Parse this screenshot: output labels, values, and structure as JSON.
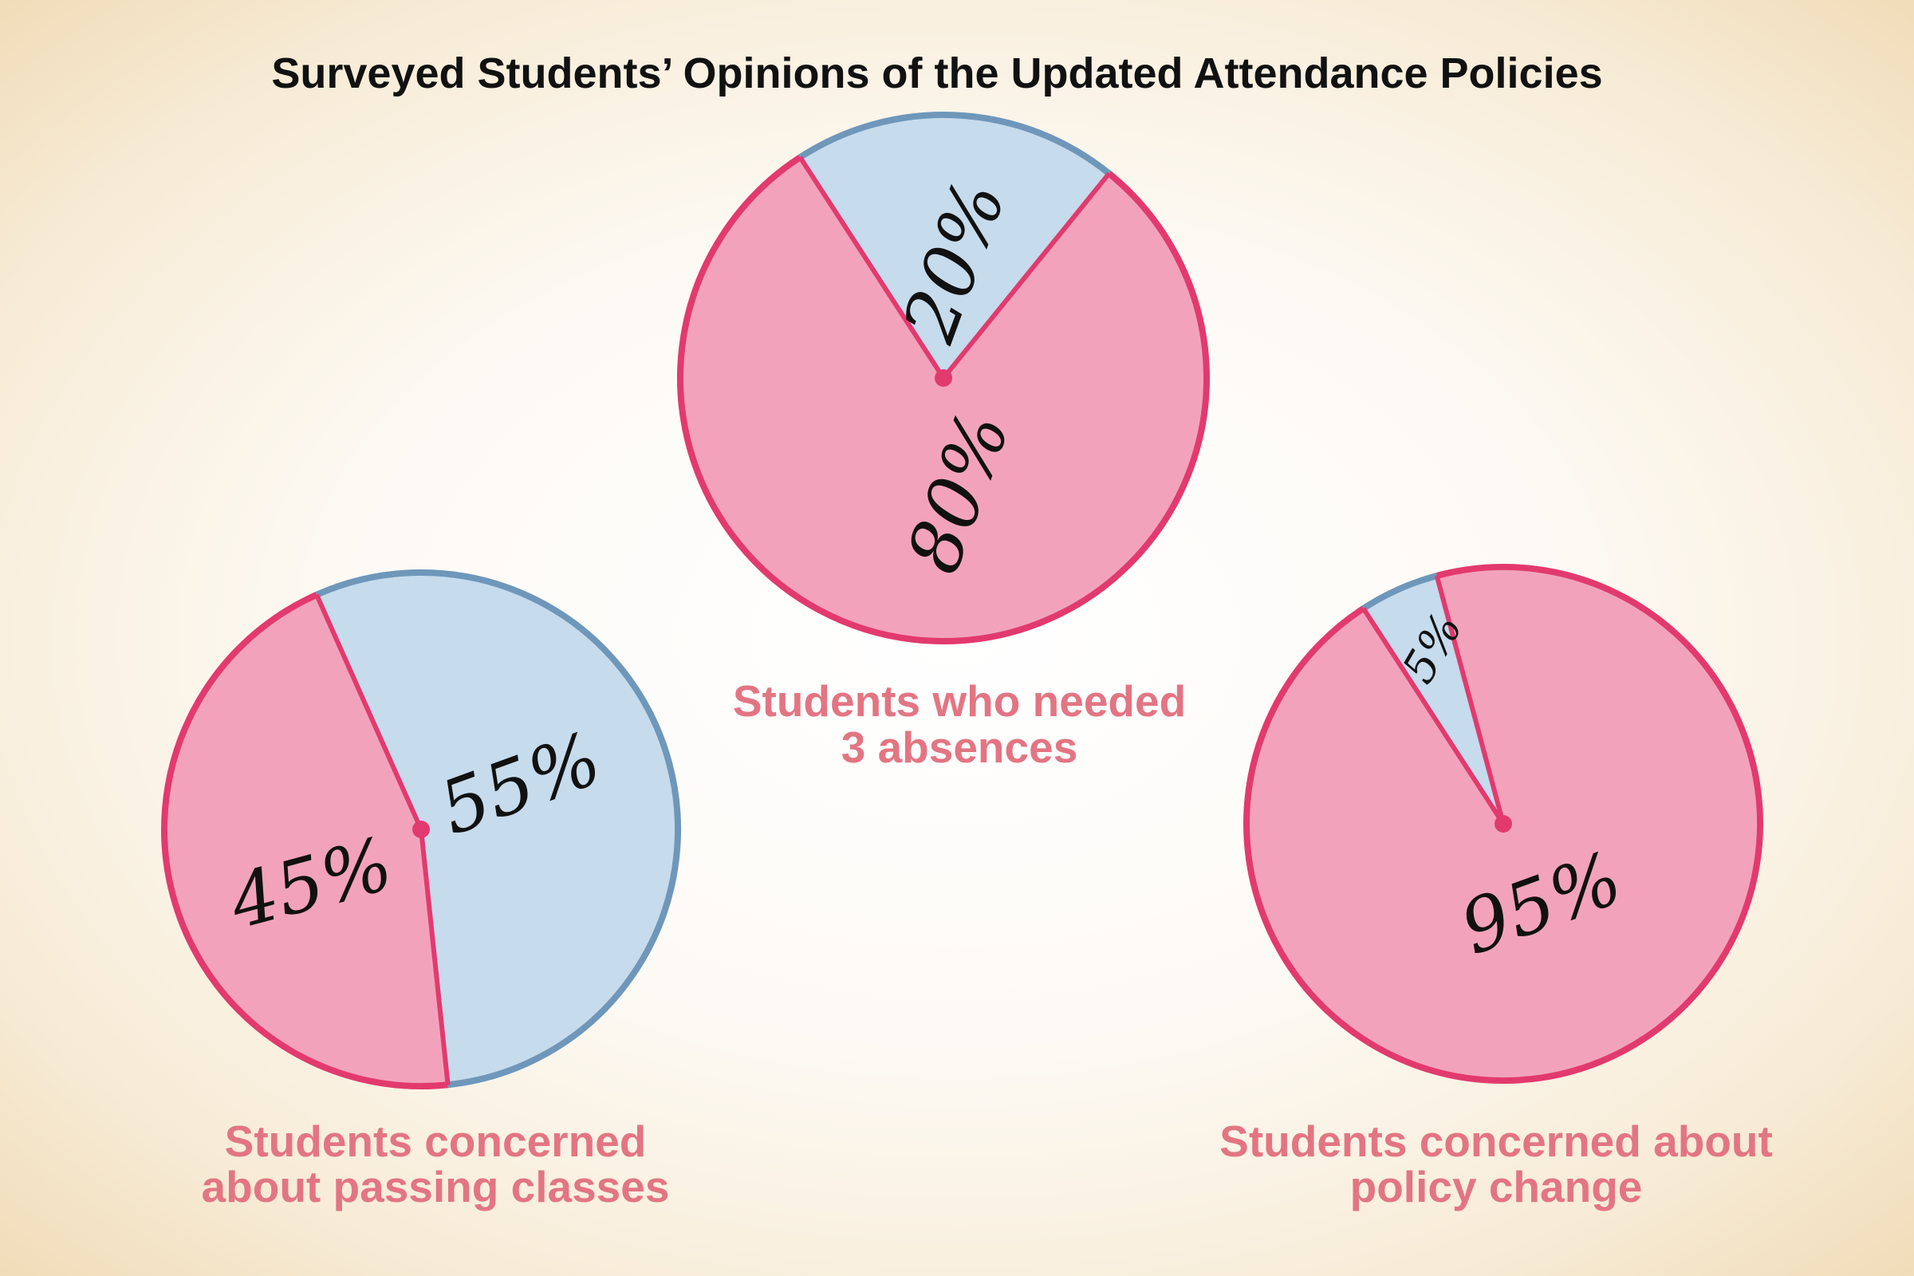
{
  "title": "Surveyed Students’ Opinions of the Updated Attendance Policies",
  "colors": {
    "pink": "#f2a3bb",
    "pink_outline": "#e23a6e",
    "blue": "#c6dbec",
    "blue_outline": "#6e97ba",
    "caption": "#e37583"
  },
  "chart_data": [
    {
      "type": "pie",
      "title": "Students who needed 3 absences",
      "caption_lines": [
        "Students who needed",
        "3 absences"
      ],
      "slices": [
        {
          "label": "20%",
          "value": 20,
          "color": "#c6dbec"
        },
        {
          "label": "80%",
          "value": 80,
          "color": "#f2a3bb"
        }
      ]
    },
    {
      "type": "pie",
      "title": "Students concerned about passing classes",
      "caption_lines": [
        "Students concerned",
        "about passing classes"
      ],
      "slices": [
        {
          "label": "55%",
          "value": 55,
          "color": "#c6dbec"
        },
        {
          "label": "45%",
          "value": 45,
          "color": "#f2a3bb"
        }
      ]
    },
    {
      "type": "pie",
      "title": "Students concerned about policy change",
      "caption_lines": [
        "Students concerned about",
        "policy change"
      ],
      "slices": [
        {
          "label": "5%",
          "value": 5,
          "color": "#c6dbec"
        },
        {
          "label": "95%",
          "value": 95,
          "color": "#f2a3bb"
        }
      ]
    }
  ]
}
